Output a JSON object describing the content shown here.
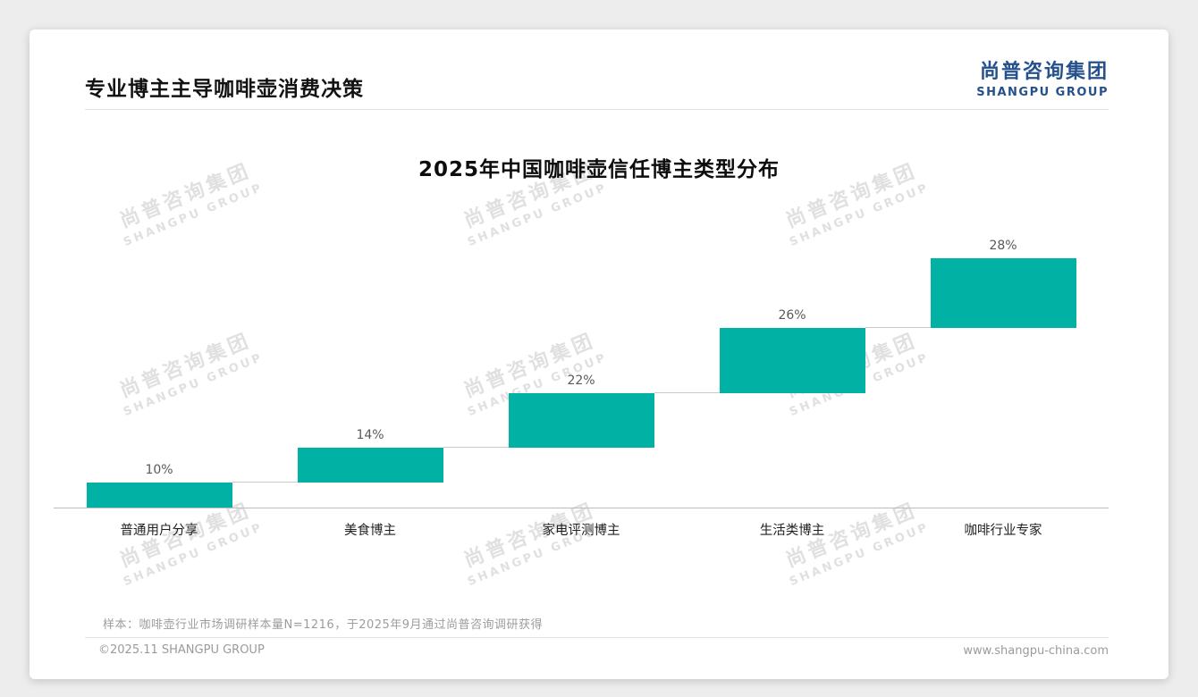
{
  "header": {
    "title": "专业博主主导咖啡壶消费决策"
  },
  "logo": {
    "cn": "尚普咨询集团",
    "en": "SHANGPU GROUP",
    "color": "#24518C"
  },
  "watermark": {
    "cn": "尚普咨询集团",
    "en": "SHANGPU GROUP"
  },
  "chart_data": {
    "type": "bar",
    "subtype": "stepped-waterfall",
    "title": "2025年中国咖啡壶信任博主类型分布",
    "categories": [
      "普通用户分享",
      "美食博主",
      "家电评测博主",
      "生活类博主",
      "咖啡行业专家"
    ],
    "values": [
      10,
      14,
      22,
      26,
      28
    ],
    "value_labels": [
      "10%",
      "14%",
      "22%",
      "26%",
      "28%"
    ],
    "cumulative_tops": [
      10,
      24,
      46,
      72,
      100
    ],
    "ylim": [
      0,
      100
    ],
    "bar_color": "#00B1A4",
    "grid": false,
    "legend": false
  },
  "footnote": "样本：咖啡壶行业市场调研样本量N=1216，于2025年9月通过尚普咨询调研获得",
  "footer": {
    "left": "©2025.11 SHANGPU GROUP",
    "right": "www.shangpu-china.com"
  }
}
